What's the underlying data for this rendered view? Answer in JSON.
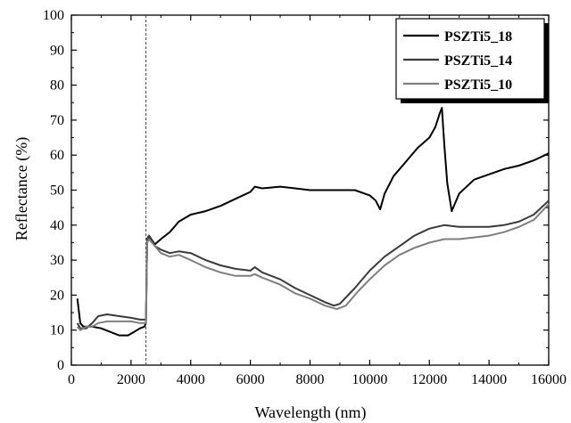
{
  "chart_data": {
    "type": "line",
    "xlabel": "Wavelength (nm)",
    "ylabel": "Reflectance (%)",
    "xlim": [
      0,
      16000
    ],
    "ylim": [
      0,
      100
    ],
    "x_ticks": [
      "0",
      "2000",
      "4000",
      "6000",
      "8000",
      "10000",
      "12000",
      "14000",
      "16000"
    ],
    "y_ticks": [
      "0",
      "10",
      "20",
      "30",
      "40",
      "50",
      "60",
      "70",
      "80",
      "90",
      "100"
    ],
    "vline_x": 2500,
    "grid": false,
    "legend_position": "top-right",
    "series": [
      {
        "name": "PSZTi5_18",
        "color": "#000000",
        "points": [
          [
            200,
            19
          ],
          [
            300,
            12
          ],
          [
            400,
            11
          ],
          [
            700,
            11
          ],
          [
            1000,
            10.5
          ],
          [
            1300,
            9.5
          ],
          [
            1600,
            8.5
          ],
          [
            1900,
            8.5
          ],
          [
            2100,
            9.5
          ],
          [
            2300,
            10.5
          ],
          [
            2450,
            11
          ],
          [
            2500,
            12
          ],
          [
            2540,
            35
          ],
          [
            2600,
            37
          ],
          [
            2800,
            34.5
          ],
          [
            3000,
            36
          ],
          [
            3300,
            38
          ],
          [
            3600,
            41
          ],
          [
            4000,
            43
          ],
          [
            4500,
            44
          ],
          [
            5000,
            45.5
          ],
          [
            5500,
            47.5
          ],
          [
            6000,
            49.5
          ],
          [
            6150,
            51
          ],
          [
            6400,
            50.5
          ],
          [
            7000,
            51
          ],
          [
            7500,
            50.5
          ],
          [
            8000,
            50
          ],
          [
            8800,
            50
          ],
          [
            9500,
            50
          ],
          [
            10000,
            48.5
          ],
          [
            10200,
            47
          ],
          [
            10350,
            44.5
          ],
          [
            10500,
            49
          ],
          [
            10800,
            54
          ],
          [
            11200,
            58
          ],
          [
            11600,
            62
          ],
          [
            12000,
            65
          ],
          [
            12200,
            68
          ],
          [
            12350,
            72
          ],
          [
            12420,
            73.5
          ],
          [
            12500,
            63
          ],
          [
            12600,
            52
          ],
          [
            12750,
            44
          ],
          [
            13000,
            49
          ],
          [
            13500,
            53
          ],
          [
            14000,
            54.5
          ],
          [
            14500,
            56
          ],
          [
            15000,
            57
          ],
          [
            15500,
            58.5
          ],
          [
            16000,
            60.5
          ]
        ]
      },
      {
        "name": "PSZTi5_14",
        "color": "#3a3a3a",
        "points": [
          [
            200,
            12
          ],
          [
            300,
            10.5
          ],
          [
            500,
            10.5
          ],
          [
            700,
            12
          ],
          [
            900,
            14
          ],
          [
            1200,
            14.5
          ],
          [
            1600,
            14
          ],
          [
            2000,
            13.5
          ],
          [
            2300,
            13
          ],
          [
            2500,
            13
          ],
          [
            2540,
            36
          ],
          [
            2600,
            37
          ],
          [
            2800,
            34
          ],
          [
            3000,
            33
          ],
          [
            3300,
            32
          ],
          [
            3600,
            32.5
          ],
          [
            4000,
            32
          ],
          [
            4500,
            30
          ],
          [
            5000,
            28.5
          ],
          [
            5500,
            27.5
          ],
          [
            6000,
            27
          ],
          [
            6150,
            28
          ],
          [
            6400,
            26.5
          ],
          [
            7000,
            24.5
          ],
          [
            7500,
            22
          ],
          [
            8000,
            20
          ],
          [
            8500,
            18
          ],
          [
            8800,
            17
          ],
          [
            9000,
            17.5
          ],
          [
            9500,
            22
          ],
          [
            10000,
            27
          ],
          [
            10500,
            31
          ],
          [
            11000,
            34
          ],
          [
            11500,
            37
          ],
          [
            12000,
            39
          ],
          [
            12500,
            40
          ],
          [
            13000,
            39.5
          ],
          [
            13500,
            39.5
          ],
          [
            14000,
            39.5
          ],
          [
            14500,
            40
          ],
          [
            15000,
            41
          ],
          [
            15500,
            43
          ],
          [
            16000,
            47
          ]
        ]
      },
      {
        "name": "PSZTi5_10",
        "color": "#7f7f7f",
        "points": [
          [
            200,
            11
          ],
          [
            300,
            10
          ],
          [
            500,
            11
          ],
          [
            700,
            11
          ],
          [
            900,
            12
          ],
          [
            1200,
            12.5
          ],
          [
            1600,
            12.5
          ],
          [
            2000,
            12.5
          ],
          [
            2300,
            12
          ],
          [
            2500,
            12
          ],
          [
            2540,
            35
          ],
          [
            2600,
            36
          ],
          [
            2800,
            34
          ],
          [
            3000,
            32
          ],
          [
            3300,
            31
          ],
          [
            3600,
            31.5
          ],
          [
            4000,
            30
          ],
          [
            4500,
            28
          ],
          [
            5000,
            26.5
          ],
          [
            5500,
            25.5
          ],
          [
            6000,
            25.5
          ],
          [
            6150,
            26
          ],
          [
            6400,
            25
          ],
          [
            7000,
            23
          ],
          [
            7500,
            20.5
          ],
          [
            8000,
            19
          ],
          [
            8500,
            17
          ],
          [
            8900,
            16
          ],
          [
            9200,
            17
          ],
          [
            9600,
            21
          ],
          [
            10000,
            24.5
          ],
          [
            10500,
            28.5
          ],
          [
            11000,
            31.5
          ],
          [
            11500,
            33.5
          ],
          [
            12000,
            35
          ],
          [
            12500,
            36
          ],
          [
            13000,
            36
          ],
          [
            13500,
            36.5
          ],
          [
            14000,
            37
          ],
          [
            14500,
            38
          ],
          [
            15000,
            39.5
          ],
          [
            15500,
            41.5
          ],
          [
            16000,
            46
          ]
        ]
      }
    ]
  }
}
